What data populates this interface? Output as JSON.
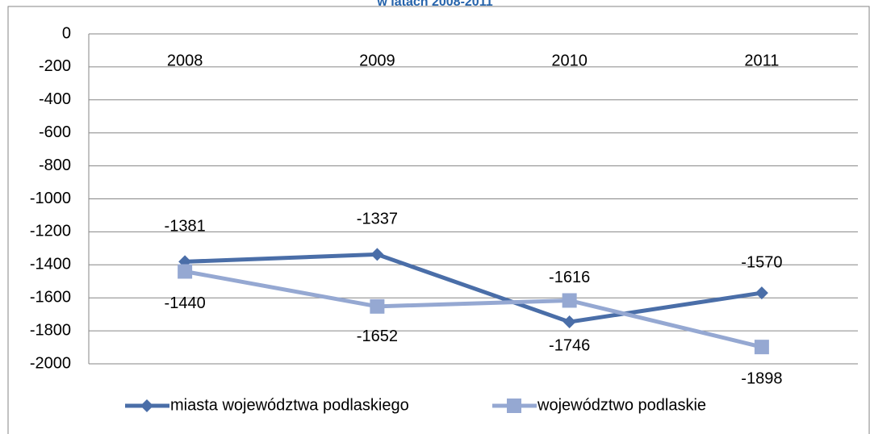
{
  "chart_data": {
    "type": "line",
    "title": "w latach 2008-2011",
    "categories": [
      "2008",
      "2009",
      "2010",
      "2011"
    ],
    "series": [
      {
        "name": "miasta województwa podlaskiego",
        "color": "#4a6ea8",
        "marker": "diamond",
        "values": [
          -1381,
          -1337,
          -1746,
          -1570
        ]
      },
      {
        "name": "województwo podlaskie",
        "color": "#95a8d2",
        "marker": "square",
        "values": [
          -1440,
          -1652,
          -1616,
          -1898
        ]
      }
    ],
    "ylim": [
      -2000,
      0
    ],
    "yticks": [
      0,
      -200,
      -400,
      -600,
      -800,
      -1000,
      -1200,
      -1400,
      -1600,
      -1800,
      -2000
    ],
    "grid": true,
    "legend": "bottom"
  }
}
